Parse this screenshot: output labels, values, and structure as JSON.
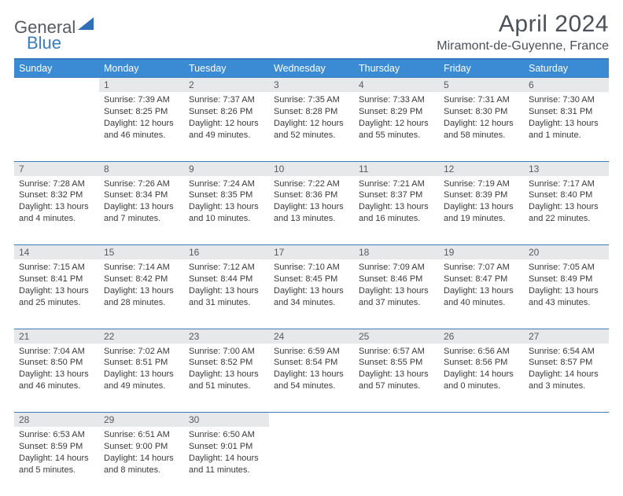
{
  "brand": {
    "part1": "General",
    "part2": "Blue"
  },
  "title": "April 2024",
  "location": "Miramont-de-Guyenne, France",
  "colors": {
    "header_bg": "#3b8bd4",
    "header_border": "#3b7bbf",
    "daynum_bg": "#e7e8e9",
    "text": "#3a3a3a",
    "title_text": "#4a5158"
  },
  "weekdays": [
    "Sunday",
    "Monday",
    "Tuesday",
    "Wednesday",
    "Thursday",
    "Friday",
    "Saturday"
  ],
  "weeks": [
    {
      "nums": [
        "",
        "1",
        "2",
        "3",
        "4",
        "5",
        "6"
      ],
      "cells": [
        {
          "sunrise": "",
          "sunset": "",
          "daylight": ""
        },
        {
          "sunrise": "Sunrise: 7:39 AM",
          "sunset": "Sunset: 8:25 PM",
          "daylight": "Daylight: 12 hours and 46 minutes."
        },
        {
          "sunrise": "Sunrise: 7:37 AM",
          "sunset": "Sunset: 8:26 PM",
          "daylight": "Daylight: 12 hours and 49 minutes."
        },
        {
          "sunrise": "Sunrise: 7:35 AM",
          "sunset": "Sunset: 8:28 PM",
          "daylight": "Daylight: 12 hours and 52 minutes."
        },
        {
          "sunrise": "Sunrise: 7:33 AM",
          "sunset": "Sunset: 8:29 PM",
          "daylight": "Daylight: 12 hours and 55 minutes."
        },
        {
          "sunrise": "Sunrise: 7:31 AM",
          "sunset": "Sunset: 8:30 PM",
          "daylight": "Daylight: 12 hours and 58 minutes."
        },
        {
          "sunrise": "Sunrise: 7:30 AM",
          "sunset": "Sunset: 8:31 PM",
          "daylight": "Daylight: 13 hours and 1 minute."
        }
      ]
    },
    {
      "nums": [
        "7",
        "8",
        "9",
        "10",
        "11",
        "12",
        "13"
      ],
      "cells": [
        {
          "sunrise": "Sunrise: 7:28 AM",
          "sunset": "Sunset: 8:32 PM",
          "daylight": "Daylight: 13 hours and 4 minutes."
        },
        {
          "sunrise": "Sunrise: 7:26 AM",
          "sunset": "Sunset: 8:34 PM",
          "daylight": "Daylight: 13 hours and 7 minutes."
        },
        {
          "sunrise": "Sunrise: 7:24 AM",
          "sunset": "Sunset: 8:35 PM",
          "daylight": "Daylight: 13 hours and 10 minutes."
        },
        {
          "sunrise": "Sunrise: 7:22 AM",
          "sunset": "Sunset: 8:36 PM",
          "daylight": "Daylight: 13 hours and 13 minutes."
        },
        {
          "sunrise": "Sunrise: 7:21 AM",
          "sunset": "Sunset: 8:37 PM",
          "daylight": "Daylight: 13 hours and 16 minutes."
        },
        {
          "sunrise": "Sunrise: 7:19 AM",
          "sunset": "Sunset: 8:39 PM",
          "daylight": "Daylight: 13 hours and 19 minutes."
        },
        {
          "sunrise": "Sunrise: 7:17 AM",
          "sunset": "Sunset: 8:40 PM",
          "daylight": "Daylight: 13 hours and 22 minutes."
        }
      ]
    },
    {
      "nums": [
        "14",
        "15",
        "16",
        "17",
        "18",
        "19",
        "20"
      ],
      "cells": [
        {
          "sunrise": "Sunrise: 7:15 AM",
          "sunset": "Sunset: 8:41 PM",
          "daylight": "Daylight: 13 hours and 25 minutes."
        },
        {
          "sunrise": "Sunrise: 7:14 AM",
          "sunset": "Sunset: 8:42 PM",
          "daylight": "Daylight: 13 hours and 28 minutes."
        },
        {
          "sunrise": "Sunrise: 7:12 AM",
          "sunset": "Sunset: 8:44 PM",
          "daylight": "Daylight: 13 hours and 31 minutes."
        },
        {
          "sunrise": "Sunrise: 7:10 AM",
          "sunset": "Sunset: 8:45 PM",
          "daylight": "Daylight: 13 hours and 34 minutes."
        },
        {
          "sunrise": "Sunrise: 7:09 AM",
          "sunset": "Sunset: 8:46 PM",
          "daylight": "Daylight: 13 hours and 37 minutes."
        },
        {
          "sunrise": "Sunrise: 7:07 AM",
          "sunset": "Sunset: 8:47 PM",
          "daylight": "Daylight: 13 hours and 40 minutes."
        },
        {
          "sunrise": "Sunrise: 7:05 AM",
          "sunset": "Sunset: 8:49 PM",
          "daylight": "Daylight: 13 hours and 43 minutes."
        }
      ]
    },
    {
      "nums": [
        "21",
        "22",
        "23",
        "24",
        "25",
        "26",
        "27"
      ],
      "cells": [
        {
          "sunrise": "Sunrise: 7:04 AM",
          "sunset": "Sunset: 8:50 PM",
          "daylight": "Daylight: 13 hours and 46 minutes."
        },
        {
          "sunrise": "Sunrise: 7:02 AM",
          "sunset": "Sunset: 8:51 PM",
          "daylight": "Daylight: 13 hours and 49 minutes."
        },
        {
          "sunrise": "Sunrise: 7:00 AM",
          "sunset": "Sunset: 8:52 PM",
          "daylight": "Daylight: 13 hours and 51 minutes."
        },
        {
          "sunrise": "Sunrise: 6:59 AM",
          "sunset": "Sunset: 8:54 PM",
          "daylight": "Daylight: 13 hours and 54 minutes."
        },
        {
          "sunrise": "Sunrise: 6:57 AM",
          "sunset": "Sunset: 8:55 PM",
          "daylight": "Daylight: 13 hours and 57 minutes."
        },
        {
          "sunrise": "Sunrise: 6:56 AM",
          "sunset": "Sunset: 8:56 PM",
          "daylight": "Daylight: 14 hours and 0 minutes."
        },
        {
          "sunrise": "Sunrise: 6:54 AM",
          "sunset": "Sunset: 8:57 PM",
          "daylight": "Daylight: 14 hours and 3 minutes."
        }
      ]
    },
    {
      "nums": [
        "28",
        "29",
        "30",
        "",
        "",
        "",
        ""
      ],
      "cells": [
        {
          "sunrise": "Sunrise: 6:53 AM",
          "sunset": "Sunset: 8:59 PM",
          "daylight": "Daylight: 14 hours and 5 minutes."
        },
        {
          "sunrise": "Sunrise: 6:51 AM",
          "sunset": "Sunset: 9:00 PM",
          "daylight": "Daylight: 14 hours and 8 minutes."
        },
        {
          "sunrise": "Sunrise: 6:50 AM",
          "sunset": "Sunset: 9:01 PM",
          "daylight": "Daylight: 14 hours and 11 minutes."
        },
        {
          "sunrise": "",
          "sunset": "",
          "daylight": ""
        },
        {
          "sunrise": "",
          "sunset": "",
          "daylight": ""
        },
        {
          "sunrise": "",
          "sunset": "",
          "daylight": ""
        },
        {
          "sunrise": "",
          "sunset": "",
          "daylight": ""
        }
      ]
    }
  ]
}
